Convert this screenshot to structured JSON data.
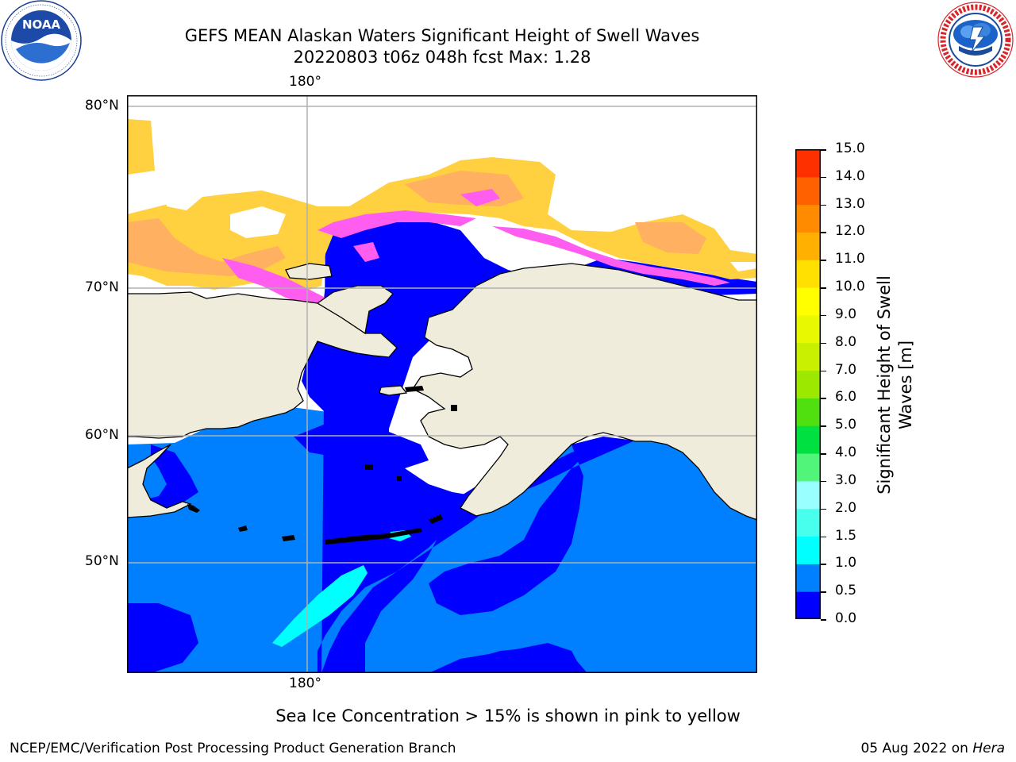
{
  "header": {
    "title": "GEFS MEAN Alaskan Waters Significant Height of Swell Waves",
    "subtitle": "20220803 t06z 048h fcst   Max: 1.28"
  },
  "logos": {
    "left": {
      "name": "NOAA",
      "ring_text": "NATIONAL OCEANIC AND ATMOSPHERIC ADMINISTRATION · U.S. DEPARTMENT OF COMMERCE"
    },
    "right": {
      "name": "NATIONAL WEATHER SERVICE"
    }
  },
  "map": {
    "lon_labels": {
      "top": "180°",
      "bottom": "180°"
    },
    "lat_labels": [
      "80°N",
      "70°N",
      "60°N",
      "50°N"
    ],
    "colors": {
      "land": "#efecdc",
      "ocean_low": "#0000ff",
      "ocean_mid": "#0080ff",
      "ocean_cyan": "#00ffff",
      "no_data": "#ffffff",
      "ice_pink": "#ff5cf0",
      "ice_orange": "#ffb060",
      "ice_yellow": "#ffd040",
      "gridline": "#b0b0b0"
    }
  },
  "colorbar": {
    "title_line1": "Significant Height of Swell",
    "title_line2": "Waves [m]",
    "labels": [
      "15.0",
      "14.0",
      "13.0",
      "12.0",
      "11.0",
      "10.0",
      "9.0",
      "8.0",
      "7.0",
      "6.0",
      "5.0",
      "4.0",
      "3.0",
      "2.0",
      "1.5",
      "1.0",
      "0.5",
      "0.0"
    ],
    "colors": [
      "#0000ff",
      "#0080ff",
      "#00ffff",
      "#48ffee",
      "#9affff",
      "#50f57a",
      "#00e040",
      "#50e010",
      "#9ce800",
      "#c8f000",
      "#e8f800",
      "#ffff00",
      "#ffe000",
      "#ffb000",
      "#ff8c00",
      "#ff6000",
      "#ff3000",
      "#ff0000"
    ]
  },
  "footnote": "Sea Ice Concentration > 15% is shown in pink to yellow",
  "footer": {
    "left": "NCEP/EMC/Verification Post Processing Product Generation Branch",
    "right_date": "05 Aug 2022 on",
    "right_host": "Hera"
  }
}
